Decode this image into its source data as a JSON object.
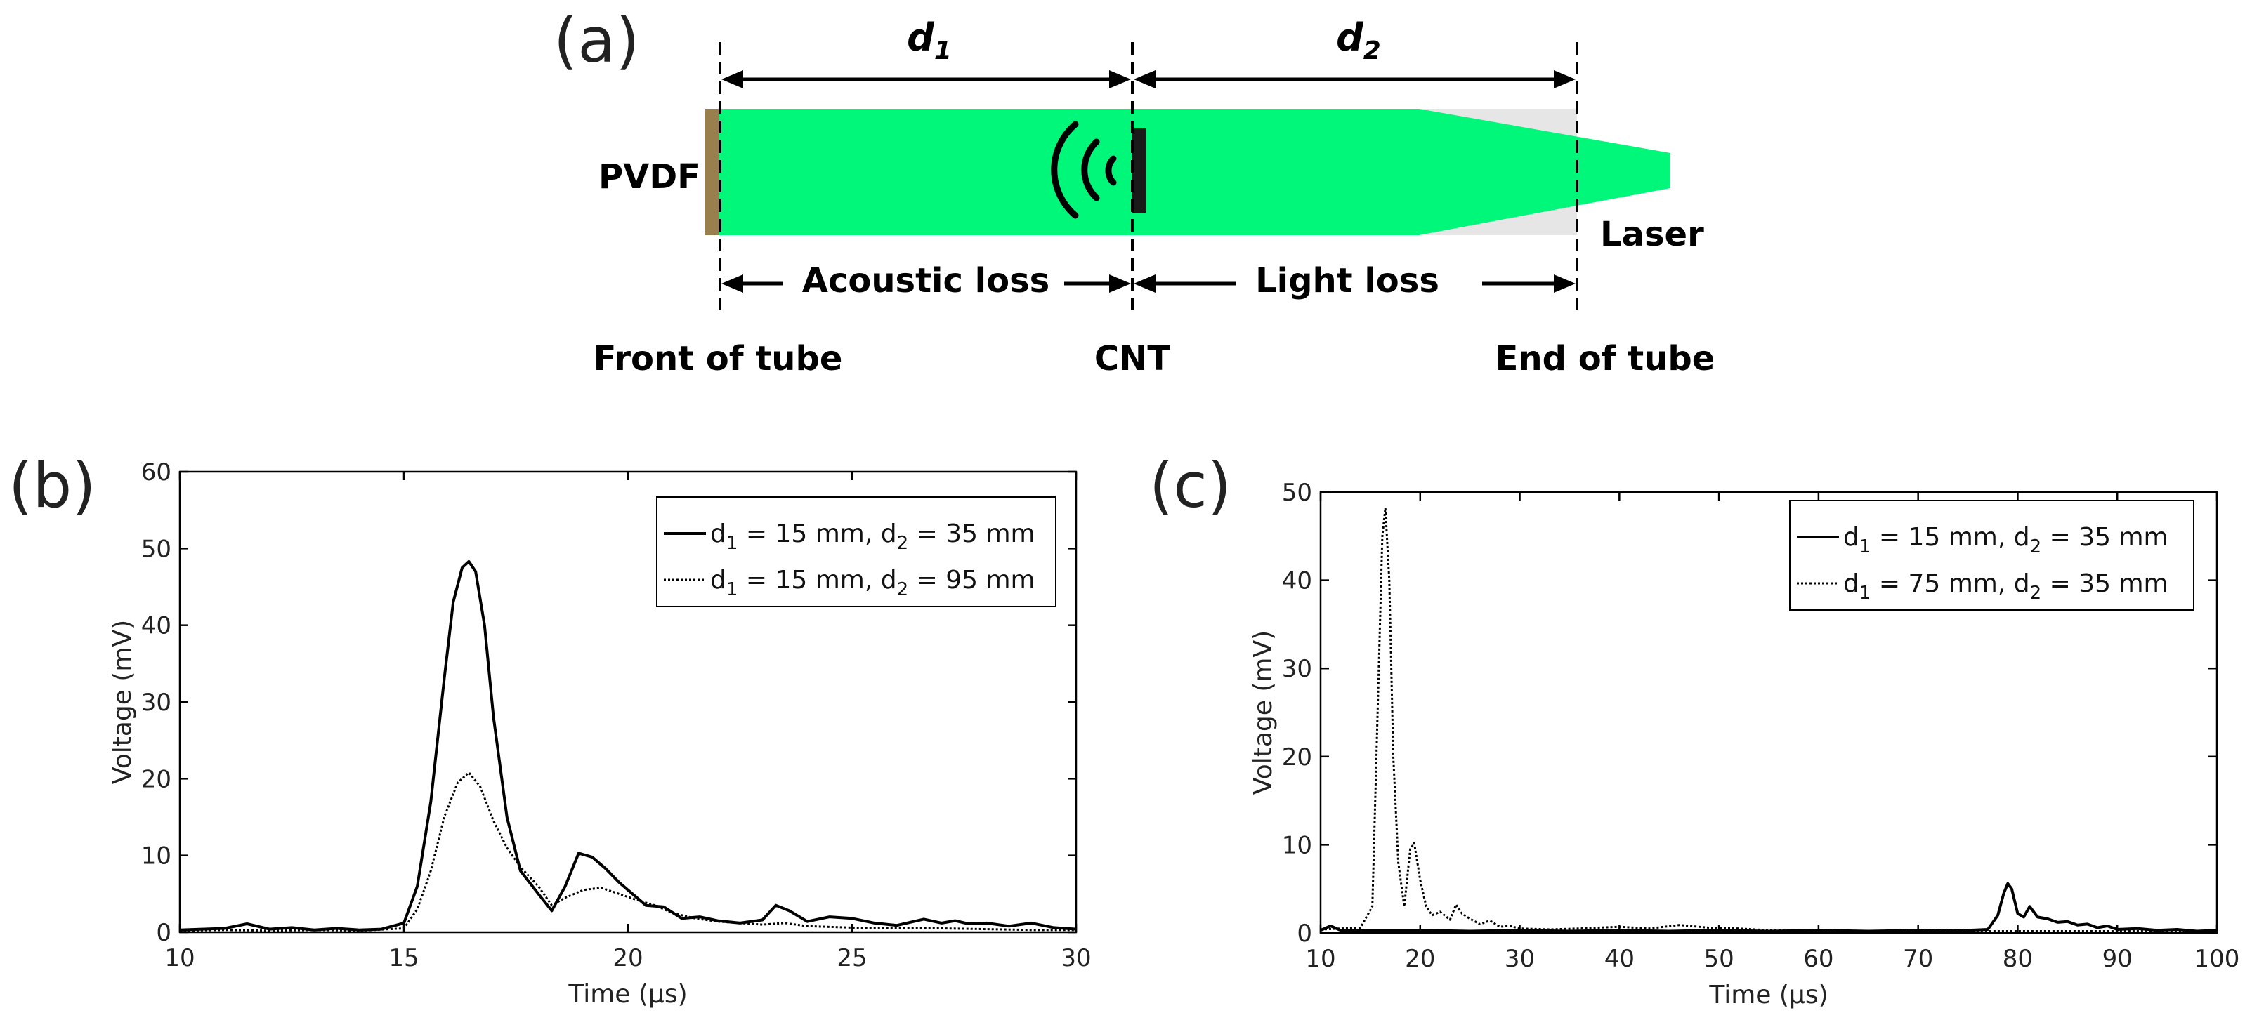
{
  "diagram": {
    "panel_label": "(a)",
    "d1_label": "d",
    "d1_sub": "1",
    "d2_label": "d",
    "d2_sub": "2",
    "pvdf_label": "PVDF",
    "laser_label": "Laser",
    "acoustic_loss_label": "Acoustic loss",
    "light_loss_label": "Light loss",
    "front_label": "Front of tube",
    "cnt_label": "CNT",
    "end_label": "End of tube",
    "colors": {
      "beam": "#00f77a",
      "tube": "#e6e6e6",
      "pvdf": "#9a7f4e",
      "cnt": "#1a1a1a"
    }
  },
  "chart_data": [
    {
      "type": "line",
      "panel_label": "(b)",
      "xlabel": "Time (μs)",
      "ylabel": "Voltage (mV)",
      "xlim": [
        10,
        30
      ],
      "ylim": [
        0,
        60
      ],
      "xticks": [
        10,
        15,
        20,
        25,
        30
      ],
      "yticks": [
        0,
        10,
        20,
        30,
        40,
        50,
        60
      ],
      "legend_position": "top-right",
      "series": [
        {
          "name": "d1 = 15 mm, d2 = 35 mm",
          "legend": {
            "a": "d",
            "a_sub": "1",
            "b": " = 15 mm, d",
            "b_sub": "2",
            "c": " = 35 mm"
          },
          "style": "solid",
          "x": [
            10,
            11,
            11.5,
            12,
            12.5,
            13,
            13.5,
            14,
            14.5,
            15,
            15.3,
            15.6,
            15.9,
            16.1,
            16.3,
            16.45,
            16.6,
            16.8,
            17,
            17.3,
            17.6,
            18,
            18.3,
            18.6,
            18.9,
            19.2,
            19.5,
            19.8,
            20.1,
            20.4,
            20.8,
            21.2,
            21.6,
            22,
            22.5,
            23,
            23.3,
            23.6,
            24,
            24.5,
            25,
            25.5,
            26,
            26.3,
            26.6,
            27,
            27.3,
            27.6,
            28,
            28.5,
            29,
            29.5,
            30
          ],
          "y": [
            0.3,
            0.5,
            1.1,
            0.4,
            0.6,
            0.3,
            0.5,
            0.3,
            0.4,
            1.2,
            6,
            17,
            33,
            43,
            47.5,
            48.3,
            47,
            40,
            28,
            15,
            8,
            5,
            2.8,
            6,
            10.3,
            9.8,
            8.3,
            6.5,
            5,
            3.5,
            3.3,
            1.8,
            2,
            1.5,
            1.2,
            1.6,
            3.5,
            2.8,
            1.4,
            2,
            1.8,
            1.2,
            0.9,
            1.3,
            1.7,
            1.2,
            1.5,
            1.1,
            1.2,
            0.8,
            1.2,
            0.6,
            0.4
          ]
        },
        {
          "name": "d1 = 15 mm, d2 = 95 mm",
          "legend": {
            "a": "d",
            "a_sub": "1",
            "b": " = 15 mm, d",
            "b_sub": "2",
            "c": " = 95 mm"
          },
          "style": "dotted",
          "x": [
            10,
            11,
            12,
            13,
            14,
            15,
            15.3,
            15.6,
            15.9,
            16.2,
            16.45,
            16.7,
            17,
            17.3,
            17.6,
            18,
            18.3,
            18.6,
            19,
            19.4,
            19.8,
            20.2,
            20.6,
            21,
            21.5,
            22,
            23,
            23.5,
            24,
            25,
            26,
            27,
            28,
            29,
            30
          ],
          "y": [
            0.2,
            0.3,
            0.2,
            0.3,
            0.2,
            0.5,
            3,
            8,
            15,
            19.5,
            20.8,
            19,
            14.5,
            11,
            8.5,
            6,
            3.5,
            4.5,
            5.5,
            5.8,
            5,
            4.2,
            3.5,
            2.5,
            1.8,
            1.4,
            1,
            1.2,
            0.8,
            0.6,
            0.5,
            0.5,
            0.4,
            0.3,
            0.3
          ]
        }
      ]
    },
    {
      "type": "line",
      "panel_label": "(c)",
      "xlabel": "Time (μs)",
      "ylabel": "Voltage (mV)",
      "xlim": [
        10,
        100
      ],
      "ylim": [
        0,
        50
      ],
      "xticks": [
        10,
        20,
        30,
        40,
        50,
        60,
        70,
        80,
        90,
        100
      ],
      "yticks": [
        0,
        10,
        20,
        30,
        40,
        50
      ],
      "legend_position": "top-right",
      "series": [
        {
          "name": "d1 = 15 mm, d2 = 35 mm",
          "legend": {
            "a": "d",
            "a_sub": "1",
            "b": " = 15 mm, d",
            "b_sub": "2",
            "c": " = 35 mm"
          },
          "style": "solid",
          "x": [
            10,
            11,
            12,
            15,
            20,
            25,
            30,
            35,
            40,
            45,
            50,
            55,
            60,
            65,
            70,
            75,
            77,
            78,
            78.6,
            79,
            79.4,
            80,
            80.6,
            81.2,
            82,
            83,
            84,
            85,
            86,
            87,
            88,
            89,
            90,
            92,
            94,
            96,
            98,
            100
          ],
          "y": [
            0.3,
            0.8,
            0.3,
            0.3,
            0.3,
            0.2,
            0.3,
            0.2,
            0.3,
            0.2,
            0.3,
            0.2,
            0.3,
            0.2,
            0.3,
            0.3,
            0.4,
            2,
            4.5,
            5.6,
            5,
            2.2,
            1.8,
            3,
            1.8,
            1.6,
            1.2,
            1.3,
            0.9,
            1,
            0.6,
            0.8,
            0.4,
            0.5,
            0.3,
            0.4,
            0.2,
            0.3
          ]
        },
        {
          "name": "d1 = 75 mm, d2 = 35 mm",
          "legend": {
            "a": "d",
            "a_sub": "1",
            "b": " = 75 mm, d",
            "b_sub": "2",
            "c": " = 35 mm"
          },
          "style": "dotted",
          "x": [
            10,
            12,
            14,
            15.2,
            15.8,
            16.2,
            16.5,
            16.9,
            17.3,
            17.8,
            18.4,
            19,
            19.4,
            20,
            20.6,
            21.2,
            22,
            23,
            23.6,
            24.2,
            25,
            26,
            27,
            28,
            29,
            30,
            33,
            36,
            40,
            43,
            46,
            49,
            52,
            55,
            60,
            70,
            80,
            90,
            100
          ],
          "y": [
            0.4,
            0.5,
            0.6,
            3,
            28,
            45,
            48.2,
            40,
            20,
            8,
            3,
            9.5,
            10.2,
            6,
            3,
            2,
            2.4,
            1.5,
            3.2,
            2.2,
            1.6,
            1,
            1.4,
            0.7,
            0.8,
            0.5,
            0.4,
            0.5,
            0.7,
            0.5,
            0.9,
            0.6,
            0.5,
            0.3,
            0.2,
            0.2,
            0.2,
            0.2,
            0.2
          ]
        }
      ]
    }
  ]
}
